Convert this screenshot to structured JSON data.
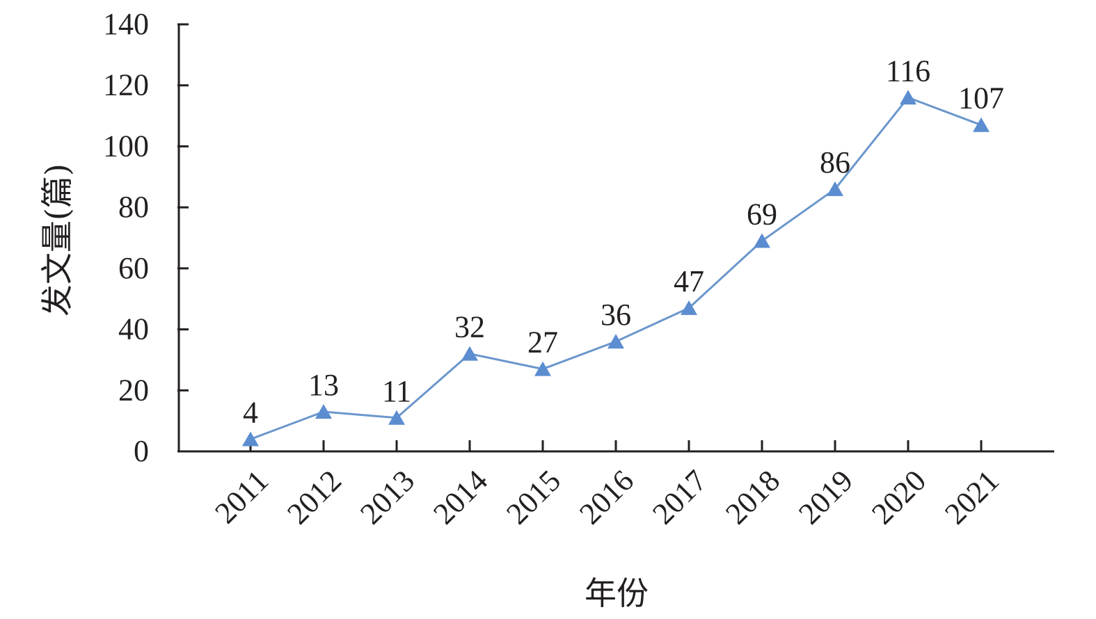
{
  "chart_data": {
    "type": "line",
    "title": "",
    "xlabel": "年份",
    "ylabel": "发文量(篇)",
    "categories": [
      "2011",
      "2012",
      "2013",
      "2014",
      "2015",
      "2016",
      "2017",
      "2018",
      "2019",
      "2020",
      "2021"
    ],
    "series": [
      {
        "values": [
          4,
          13,
          11,
          32,
          27,
          36,
          47,
          69,
          86,
          116,
          107
        ]
      }
    ],
    "yticks": [
      0,
      20,
      40,
      60,
      80,
      100,
      120,
      140
    ],
    "ylim": [
      0,
      140
    ],
    "grid": false,
    "legend": "none",
    "marker": "triangle",
    "data_labels": true,
    "line_color": "#6a96cc",
    "marker_color": "#5b8dd0",
    "axis_color": "#231f20"
  }
}
